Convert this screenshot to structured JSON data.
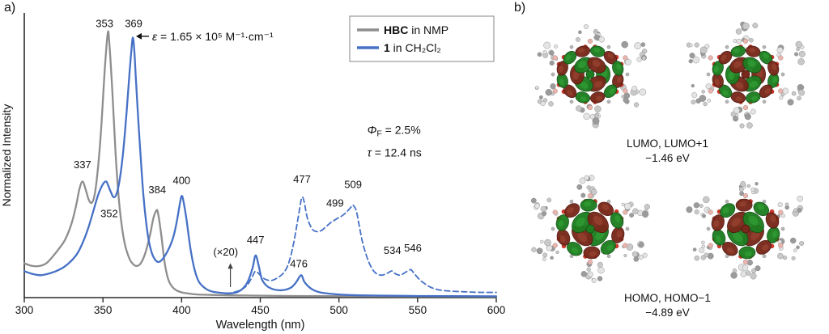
{
  "panel_a": {
    "label": "a)"
  },
  "panel_b": {
    "label": "b)",
    "top": {
      "line1": "LUMO, LUMO+1",
      "line2": "−1.46 eV"
    },
    "bottom": {
      "line1": "HOMO, HOMO−1",
      "line2": "−4.89 eV"
    }
  },
  "chart_data": {
    "type": "line",
    "title": "",
    "xlabel": "Wavelength (nm)",
    "ylabel": "Normalized Intensity",
    "xlim": [
      300,
      600
    ],
    "ylim": [
      0,
      1.06
    ],
    "xticks": [
      300,
      350,
      400,
      450,
      500,
      550,
      600
    ],
    "grid": false,
    "legend_position": "top-right",
    "legend": [
      {
        "bold": "HBC",
        "rest": " in NMP",
        "color": "#8e8e8e",
        "style": "solid"
      },
      {
        "bold": "1",
        "rest": " in CH₂Cl₂",
        "color": "#4671c6",
        "style": "solid"
      }
    ],
    "series": [
      {
        "name": "HBC absorption in NMP",
        "color": "#8e8e8e",
        "style": "solid",
        "points": [
          [
            300,
            0.13
          ],
          [
            305,
            0.12
          ],
          [
            310,
            0.12
          ],
          [
            314,
            0.13
          ],
          [
            318,
            0.155
          ],
          [
            322,
            0.185
          ],
          [
            326,
            0.22
          ],
          [
            330,
            0.28
          ],
          [
            333,
            0.35
          ],
          [
            335,
            0.41
          ],
          [
            337,
            0.44
          ],
          [
            339,
            0.41
          ],
          [
            341,
            0.37
          ],
          [
            343,
            0.36
          ],
          [
            345,
            0.4
          ],
          [
            347,
            0.5
          ],
          [
            349,
            0.65
          ],
          [
            351,
            0.85
          ],
          [
            353,
            1.0
          ],
          [
            354,
            0.97
          ],
          [
            356,
            0.78
          ],
          [
            358,
            0.55
          ],
          [
            360,
            0.38
          ],
          [
            362,
            0.27
          ],
          [
            364,
            0.2
          ],
          [
            366,
            0.16
          ],
          [
            368,
            0.135
          ],
          [
            371,
            0.12
          ],
          [
            374,
            0.13
          ],
          [
            377,
            0.17
          ],
          [
            380,
            0.24
          ],
          [
            382,
            0.3
          ],
          [
            384,
            0.33
          ],
          [
            385,
            0.32
          ],
          [
            387,
            0.24
          ],
          [
            389,
            0.14
          ],
          [
            391,
            0.08
          ],
          [
            393,
            0.05
          ],
          [
            396,
            0.03
          ],
          [
            400,
            0.02
          ],
          [
            405,
            0.015
          ],
          [
            410,
            0.012
          ],
          [
            420,
            0.01
          ],
          [
            440,
            0.008
          ],
          [
            470,
            0.006
          ],
          [
            520,
            0.005
          ],
          [
            600,
            0.004
          ]
        ]
      },
      {
        "name": "1 absorption in CH2Cl2",
        "color": "#4671c6",
        "style": "solid",
        "points": [
          [
            300,
            0.1
          ],
          [
            305,
            0.09
          ],
          [
            310,
            0.085
          ],
          [
            315,
            0.09
          ],
          [
            320,
            0.1
          ],
          [
            325,
            0.115
          ],
          [
            330,
            0.14
          ],
          [
            334,
            0.17
          ],
          [
            338,
            0.22
          ],
          [
            341,
            0.27
          ],
          [
            344,
            0.33
          ],
          [
            347,
            0.39
          ],
          [
            350,
            0.43
          ],
          [
            352,
            0.44
          ],
          [
            353,
            0.43
          ],
          [
            355,
            0.4
          ],
          [
            357,
            0.38
          ],
          [
            359,
            0.4
          ],
          [
            361,
            0.46
          ],
          [
            363,
            0.56
          ],
          [
            365,
            0.7
          ],
          [
            367,
            0.86
          ],
          [
            368,
            0.93
          ],
          [
            369,
            0.985
          ],
          [
            370,
            0.93
          ],
          [
            371,
            0.82
          ],
          [
            373,
            0.62
          ],
          [
            375,
            0.44
          ],
          [
            377,
            0.31
          ],
          [
            379,
            0.22
          ],
          [
            381,
            0.17
          ],
          [
            383,
            0.145
          ],
          [
            385,
            0.135
          ],
          [
            387,
            0.14
          ],
          [
            389,
            0.155
          ],
          [
            391,
            0.175
          ],
          [
            393,
            0.2
          ],
          [
            395,
            0.235
          ],
          [
            397,
            0.29
          ],
          [
            399,
            0.36
          ],
          [
            400,
            0.385
          ],
          [
            401,
            0.37
          ],
          [
            403,
            0.3
          ],
          [
            405,
            0.21
          ],
          [
            407,
            0.14
          ],
          [
            409,
            0.09
          ],
          [
            411,
            0.06
          ],
          [
            414,
            0.04
          ],
          [
            417,
            0.028
          ],
          [
            420,
            0.022
          ],
          [
            425,
            0.018
          ],
          [
            430,
            0.016
          ],
          [
            435,
            0.02
          ],
          [
            439,
            0.035
          ],
          [
            442,
            0.06
          ],
          [
            445,
            0.11
          ],
          [
            447,
            0.16
          ],
          [
            449,
            0.12
          ],
          [
            451,
            0.07
          ],
          [
            454,
            0.045
          ],
          [
            458,
            0.032
          ],
          [
            462,
            0.028
          ],
          [
            466,
            0.03
          ],
          [
            470,
            0.04
          ],
          [
            473,
            0.06
          ],
          [
            476,
            0.085
          ],
          [
            478,
            0.06
          ],
          [
            481,
            0.04
          ],
          [
            484,
            0.028
          ],
          [
            488,
            0.02
          ],
          [
            494,
            0.015
          ],
          [
            505,
            0.01
          ],
          [
            520,
            0.008
          ],
          [
            550,
            0.006
          ],
          [
            600,
            0.005
          ]
        ]
      },
      {
        "name": "1 emission in CH2Cl2 (x20)",
        "color": "#4671c6",
        "style": "dashed",
        "points": [
          [
            428,
            0.015
          ],
          [
            433,
            0.02
          ],
          [
            438,
            0.03
          ],
          [
            442,
            0.05
          ],
          [
            445,
            0.08
          ],
          [
            447,
            0.1
          ],
          [
            450,
            0.085
          ],
          [
            453,
            0.07
          ],
          [
            457,
            0.065
          ],
          [
            461,
            0.075
          ],
          [
            465,
            0.095
          ],
          [
            468,
            0.13
          ],
          [
            471,
            0.2
          ],
          [
            474,
            0.3
          ],
          [
            476,
            0.37
          ],
          [
            477,
            0.38
          ],
          [
            478,
            0.36
          ],
          [
            480,
            0.3
          ],
          [
            483,
            0.26
          ],
          [
            486,
            0.25
          ],
          [
            489,
            0.255
          ],
          [
            492,
            0.27
          ],
          [
            495,
            0.285
          ],
          [
            499,
            0.3
          ],
          [
            502,
            0.31
          ],
          [
            505,
            0.325
          ],
          [
            508,
            0.345
          ],
          [
            509,
            0.35
          ],
          [
            511,
            0.33
          ],
          [
            513,
            0.27
          ],
          [
            515,
            0.21
          ],
          [
            518,
            0.15
          ],
          [
            521,
            0.11
          ],
          [
            524,
            0.09
          ],
          [
            527,
            0.085
          ],
          [
            530,
            0.09
          ],
          [
            533,
            0.1
          ],
          [
            534,
            0.1
          ],
          [
            536,
            0.09
          ],
          [
            539,
            0.085
          ],
          [
            542,
            0.095
          ],
          [
            545,
            0.105
          ],
          [
            546,
            0.105
          ],
          [
            548,
            0.09
          ],
          [
            551,
            0.07
          ],
          [
            554,
            0.055
          ],
          [
            558,
            0.04
          ],
          [
            563,
            0.03
          ],
          [
            570,
            0.025
          ],
          [
            580,
            0.022
          ],
          [
            590,
            0.02
          ],
          [
            600,
            0.02
          ]
        ]
      }
    ],
    "peak_labels": [
      {
        "text": "337",
        "x": 337,
        "y": 0.49
      },
      {
        "text": "353",
        "x": 351,
        "y": 1.025
      },
      {
        "text": "369",
        "x": 369.5,
        "y": 1.025
      },
      {
        "text": "352",
        "x": 354,
        "y": 0.305
      },
      {
        "text": "384",
        "x": 384.5,
        "y": 0.395
      },
      {
        "text": "400",
        "x": 400,
        "y": 0.43
      },
      {
        "text": "447",
        "x": 447,
        "y": 0.205
      },
      {
        "text": "476",
        "x": 474.5,
        "y": 0.115
      },
      {
        "text": "477",
        "x": 476.5,
        "y": 0.435
      },
      {
        "text": "499",
        "x": 497.5,
        "y": 0.345
      },
      {
        "text": "509",
        "x": 509,
        "y": 0.415
      },
      {
        "text": "534",
        "x": 534,
        "y": 0.165
      },
      {
        "text": "546",
        "x": 547,
        "y": 0.175
      }
    ],
    "annotations": {
      "epsilon": {
        "sym": "ε",
        "rest": " = 1.65 × 10⁵ M⁻¹·cm⁻¹",
        "arrow_to_x": 371,
        "y": 0.99
      },
      "x20": {
        "text": "(×20)",
        "x": 428,
        "y": 0.16,
        "arrow_x": 431,
        "arrow_y1": 0.04,
        "arrow_y2": 0.125
      },
      "phi": {
        "sym": "Φ",
        "sub": "F",
        "rest": " = 2.5%",
        "x": 518,
        "y": 0.62
      },
      "tau": {
        "sym": "τ",
        "rest": " = 12.4 ns",
        "x": 518,
        "y": 0.535
      }
    }
  }
}
